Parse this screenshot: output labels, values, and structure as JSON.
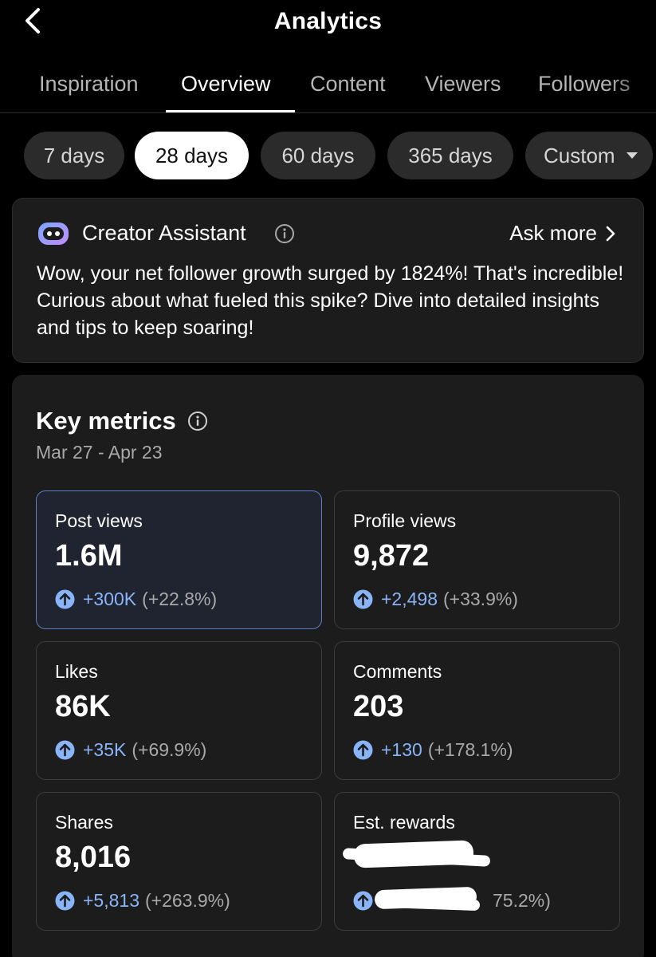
{
  "header": {
    "title": "Analytics"
  },
  "tabs": [
    {
      "label": "Inspiration"
    },
    {
      "label": "Overview"
    },
    {
      "label": "Content"
    },
    {
      "label": "Viewers"
    },
    {
      "label": "Followers"
    }
  ],
  "active_tab": "Overview",
  "ranges": [
    {
      "label": "7 days"
    },
    {
      "label": "28 days"
    },
    {
      "label": "60 days"
    },
    {
      "label": "365 days"
    },
    {
      "label": "Custom"
    }
  ],
  "active_range": "28 days",
  "assistant": {
    "title": "Creator Assistant",
    "link": "Ask more",
    "message": "Wow, your net follower growth surged by 1824%! That's incredible! Curious about what fueled this spike? Dive into detailed insights and tips to keep soaring!"
  },
  "metrics": {
    "title": "Key metrics",
    "date_range": "Mar 27 - Apr 23",
    "cards": [
      {
        "label": "Post views",
        "value": "1.6M",
        "delta": "+300K",
        "percent": "(+22.8%)"
      },
      {
        "label": "Profile views",
        "value": "9,872",
        "delta": "+2,498",
        "percent": "(+33.9%)"
      },
      {
        "label": "Likes",
        "value": "86K",
        "delta": "+35K",
        "percent": "(+69.9%)"
      },
      {
        "label": "Comments",
        "value": "203",
        "delta": "+130",
        "percent": "(+178.1%)"
      },
      {
        "label": "Shares",
        "value": "8,016",
        "delta": "+5,813",
        "percent": "(+263.9%)"
      },
      {
        "label": "Est. rewards",
        "value": "",
        "delta": "",
        "percent": "75.2%)"
      }
    ]
  },
  "colors": {
    "accent_blue": "#8ab4f8",
    "selected_border": "#5a7fc1",
    "card_bg": "#1c1c1c",
    "chip_bg": "#2b2b2b"
  },
  "icons": {
    "back": "chevron-left-icon",
    "assistant": "robot-icon",
    "info": "info-icon",
    "ask_more": "chevron-right-icon",
    "increase": "arrow-up-circle-icon",
    "dropdown": "caret-down-icon"
  }
}
